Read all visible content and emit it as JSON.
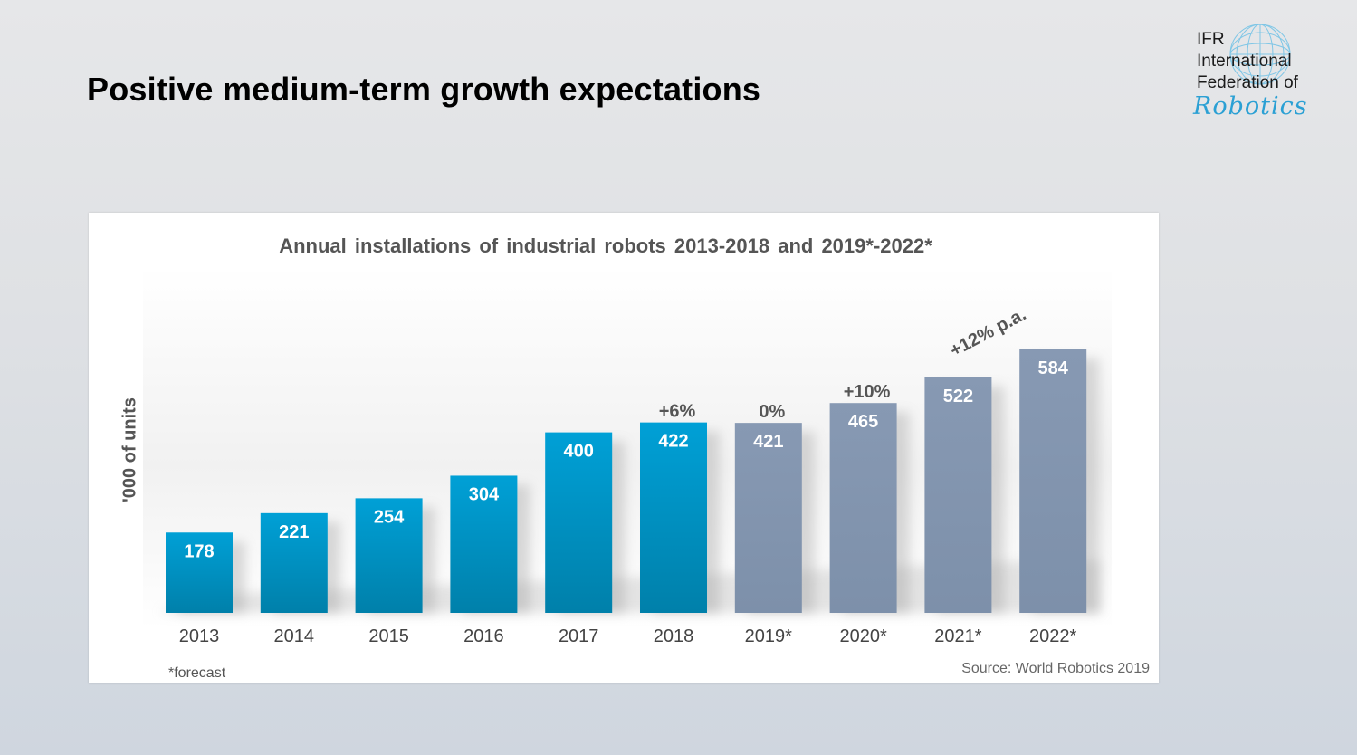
{
  "slide": {
    "title": "Positive medium-term growth expectations"
  },
  "logo": {
    "line1": "IFR",
    "line2": "International",
    "line3": "Federation of",
    "line4": "Robotics"
  },
  "chart_data": {
    "type": "bar",
    "title": "Annual installations of industrial robots 2013-2018 and 2019*-2022*",
    "xlabel": "",
    "ylabel": "'000 of units",
    "categories": [
      "2013",
      "2014",
      "2015",
      "2016",
      "2017",
      "2018",
      "2019*",
      "2020*",
      "2021*",
      "2022*"
    ],
    "values": [
      178,
      221,
      254,
      304,
      400,
      422,
      421,
      465,
      522,
      584
    ],
    "is_forecast": [
      false,
      false,
      false,
      false,
      false,
      false,
      true,
      true,
      true,
      true
    ],
    "growth_annotations": [
      {
        "category": "2018",
        "text": "+6%"
      },
      {
        "category": "2019*",
        "text": "0%"
      },
      {
        "category": "2020*",
        "text": "+10%"
      },
      {
        "category": "2021*",
        "text": "+12% p.a."
      }
    ],
    "ylim": [
      0,
      650
    ],
    "grid": false,
    "legend": "none",
    "colors": {
      "actual": "#0094c7",
      "forecast": "#8496b0"
    },
    "footnote": "*forecast",
    "source": "Source: World Robotics 2019"
  }
}
